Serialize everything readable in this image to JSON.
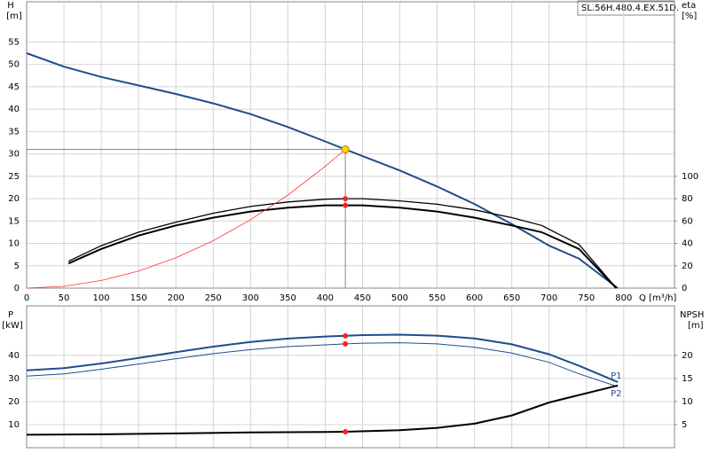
{
  "chart_data": [
    {
      "type": "line",
      "label": "SL.56H.480.4.EX.51D.",
      "y_title": "H",
      "y_unit": "[m]",
      "y2_title": "eta",
      "y2_unit": "[%]",
      "x_title": "Q [m³/h]",
      "xlim": [
        0,
        868
      ],
      "xticks": [
        0,
        50,
        100,
        150,
        200,
        250,
        300,
        350,
        400,
        450,
        500,
        550,
        600,
        650,
        700,
        750,
        800
      ],
      "ylim": [
        0,
        64
      ],
      "yticks": [
        0,
        5,
        10,
        15,
        20,
        25,
        30,
        35,
        40,
        45,
        50,
        55
      ],
      "y2lim": [
        0,
        256
      ],
      "y2ticks": [
        0,
        20,
        40,
        60,
        80,
        100
      ],
      "grid": true,
      "series": [
        {
          "color": "#1f4e8c",
          "width": 2,
          "axis": "y",
          "x": [
            0,
            50,
            100,
            150,
            200,
            250,
            300,
            350,
            400,
            427,
            450,
            500,
            550,
            600,
            650,
            700,
            740,
            792
          ],
          "values": [
            52.5,
            49.5,
            47.2,
            45.3,
            43.4,
            41.3,
            38.9,
            36,
            32.8,
            31,
            29.5,
            26.3,
            22.7,
            18.8,
            14.3,
            9.5,
            6.6,
            0
          ]
        },
        {
          "color": "#000000",
          "width": 1.3,
          "axis": "y2",
          "x": [
            56,
            100,
            150,
            200,
            250,
            300,
            350,
            400,
            427,
            450,
            500,
            550,
            600,
            650,
            690,
            740,
            790
          ],
          "values": [
            24,
            38,
            50,
            59,
            67,
            73,
            77,
            79.5,
            80,
            80,
            78,
            75,
            70,
            63,
            56,
            39,
            0
          ]
        },
        {
          "color": "#000000",
          "width": 2,
          "axis": "y2",
          "x": [
            56,
            100,
            150,
            200,
            250,
            300,
            350,
            400,
            427,
            450,
            500,
            550,
            600,
            650,
            690,
            740,
            790
          ],
          "values": [
            22,
            35,
            47,
            56,
            63,
            68.5,
            72,
            74,
            74,
            74,
            72,
            68.5,
            63,
            56,
            50,
            35,
            0
          ]
        },
        {
          "color": "#ff3333",
          "width": 0.8,
          "axis": "y",
          "x": [
            0,
            50,
            100,
            150,
            200,
            250,
            300,
            350,
            400,
            427
          ],
          "values": [
            0,
            0.4,
            1.7,
            3.8,
            6.8,
            10.6,
            15.3,
            20.8,
            27.2,
            31
          ]
        }
      ],
      "markers": [
        {
          "x": 427,
          "y": 31,
          "axis": "y",
          "color": "#ffd700",
          "crosshair": true
        },
        {
          "x": 427,
          "y": 80,
          "axis": "y2",
          "color": "#ff2020"
        },
        {
          "x": 427,
          "y": 74,
          "axis": "y2",
          "color": "#ff2020"
        }
      ]
    },
    {
      "type": "line",
      "y_title": "P",
      "y_unit": "[kW]",
      "y2_title": "NPSH",
      "y2_unit": "[m]",
      "xlim": [
        0,
        868
      ],
      "ylim": [
        0,
        61.5
      ],
      "yticks": [
        10,
        20,
        30,
        40
      ],
      "y2lim": [
        0,
        30.75
      ],
      "y2ticks": [
        5,
        10,
        15,
        20
      ],
      "grid": true,
      "series": [
        {
          "name": "P1",
          "color": "#1f4e8c",
          "width": 2,
          "axis": "y",
          "x": [
            0,
            50,
            100,
            150,
            200,
            250,
            300,
            350,
            400,
            427,
            450,
            500,
            550,
            600,
            650,
            700,
            740,
            792
          ],
          "values": [
            33.5,
            34.5,
            36.5,
            38.9,
            41.4,
            43.8,
            45.8,
            47.3,
            48.2,
            48.5,
            48.8,
            49,
            48.6,
            47.4,
            44.8,
            40.5,
            35.5,
            28.5
          ]
        },
        {
          "name": "P2",
          "color": "#1f4e8c",
          "width": 1,
          "axis": "y",
          "x": [
            0,
            50,
            100,
            150,
            200,
            250,
            300,
            350,
            400,
            427,
            450,
            500,
            550,
            600,
            650,
            700,
            740,
            792
          ],
          "values": [
            31,
            32,
            34,
            36.3,
            38.6,
            40.8,
            42.5,
            43.8,
            44.6,
            45,
            45.3,
            45.5,
            45,
            43.6,
            41,
            37,
            32,
            26.5
          ]
        },
        {
          "color": "#000000",
          "width": 2,
          "axis": "y2",
          "x": [
            0,
            100,
            200,
            300,
            400,
            427,
            500,
            550,
            600,
            650,
            700,
            792
          ],
          "values": [
            2.8,
            2.9,
            3.1,
            3.3,
            3.4,
            3.45,
            3.8,
            4.3,
            5.2,
            7,
            9.8,
            13.5
          ]
        }
      ],
      "markers": [
        {
          "x": 427,
          "y": 48.5,
          "axis": "y",
          "color": "#ff2020"
        },
        {
          "x": 427,
          "y": 45,
          "axis": "y",
          "color": "#ff2020"
        },
        {
          "x": 427,
          "y": 3.45,
          "axis": "y2",
          "color": "#ff2020"
        }
      ]
    }
  ]
}
